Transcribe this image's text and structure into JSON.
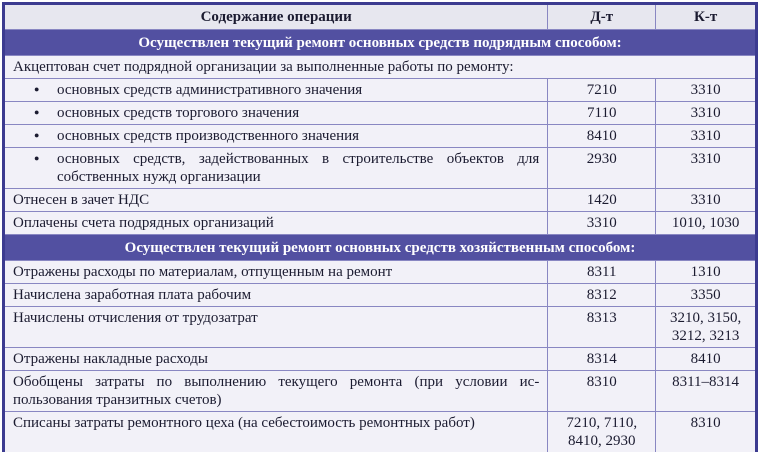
{
  "colors": {
    "outer_border": "#3c3b90",
    "inner_border": "#8987c2",
    "header_bg": "#e7e7ef",
    "section_bg": "#5250a1",
    "section_text": "#ffffff",
    "row_bg": "#f2f1f8",
    "text": "#1b1b30"
  },
  "table": {
    "bullet": "●",
    "columns": [
      {
        "key": "op",
        "label": "Содержание операции"
      },
      {
        "key": "dt",
        "label": "Д-т"
      },
      {
        "key": "kt",
        "label": "К-т"
      }
    ],
    "rows": [
      {
        "type": "section",
        "text": "Осуществлен текущий ремонт основных средств подрядным способом:"
      },
      {
        "type": "span",
        "text": "Акцептован счет подрядной организации за выполненные работы по ремонту:"
      },
      {
        "type": "bullet",
        "text": "основных средств административного значения",
        "dt": "7210",
        "kt": "3310"
      },
      {
        "type": "bullet",
        "text": "основных средств торгового значения",
        "dt": "7110",
        "kt": "3310"
      },
      {
        "type": "bullet",
        "text": "основных средств производственного значения",
        "dt": "8410",
        "kt": "3310"
      },
      {
        "type": "bullet",
        "text": "основных средств, задействованных в строительстве объектов для собственных нужд организации",
        "dt": "2930",
        "kt": "3310"
      },
      {
        "type": "row",
        "text": "Отнесен в зачет НДС",
        "dt": "1420",
        "kt": "3310"
      },
      {
        "type": "row",
        "text": "Оплачены счета подрядных организаций",
        "dt": "3310",
        "kt": "1010, 1030"
      },
      {
        "type": "section",
        "text": "Осуществлен текущий ремонт основных средств хозяйственным способом:"
      },
      {
        "type": "row",
        "text": "Отражены расходы по материалам, отпущенным на ремонт",
        "dt": "8311",
        "kt": "1310"
      },
      {
        "type": "row",
        "text": "Начислена заработная плата рабочим",
        "dt": "8312",
        "kt": "3350"
      },
      {
        "type": "row",
        "text": "Начислены отчисления от трудозатрат",
        "dt": "8313",
        "kt": "3210, 3150, 3212, 3213"
      },
      {
        "type": "row",
        "text": "Отражены накладные расходы",
        "dt": "8314",
        "kt": "8410"
      },
      {
        "type": "row",
        "text": "Обобщены затраты по выполнению текущего ремонта (при условии ис­пользования транзитных счетов)",
        "dt": "8310",
        "kt": "8311–8314"
      },
      {
        "type": "row",
        "text": "Списаны затраты ремонтного цеха (на себестоимость ремонтных работ)",
        "dt": "7210, 7110, 8410, 2930",
        "kt": "8310"
      }
    ]
  }
}
